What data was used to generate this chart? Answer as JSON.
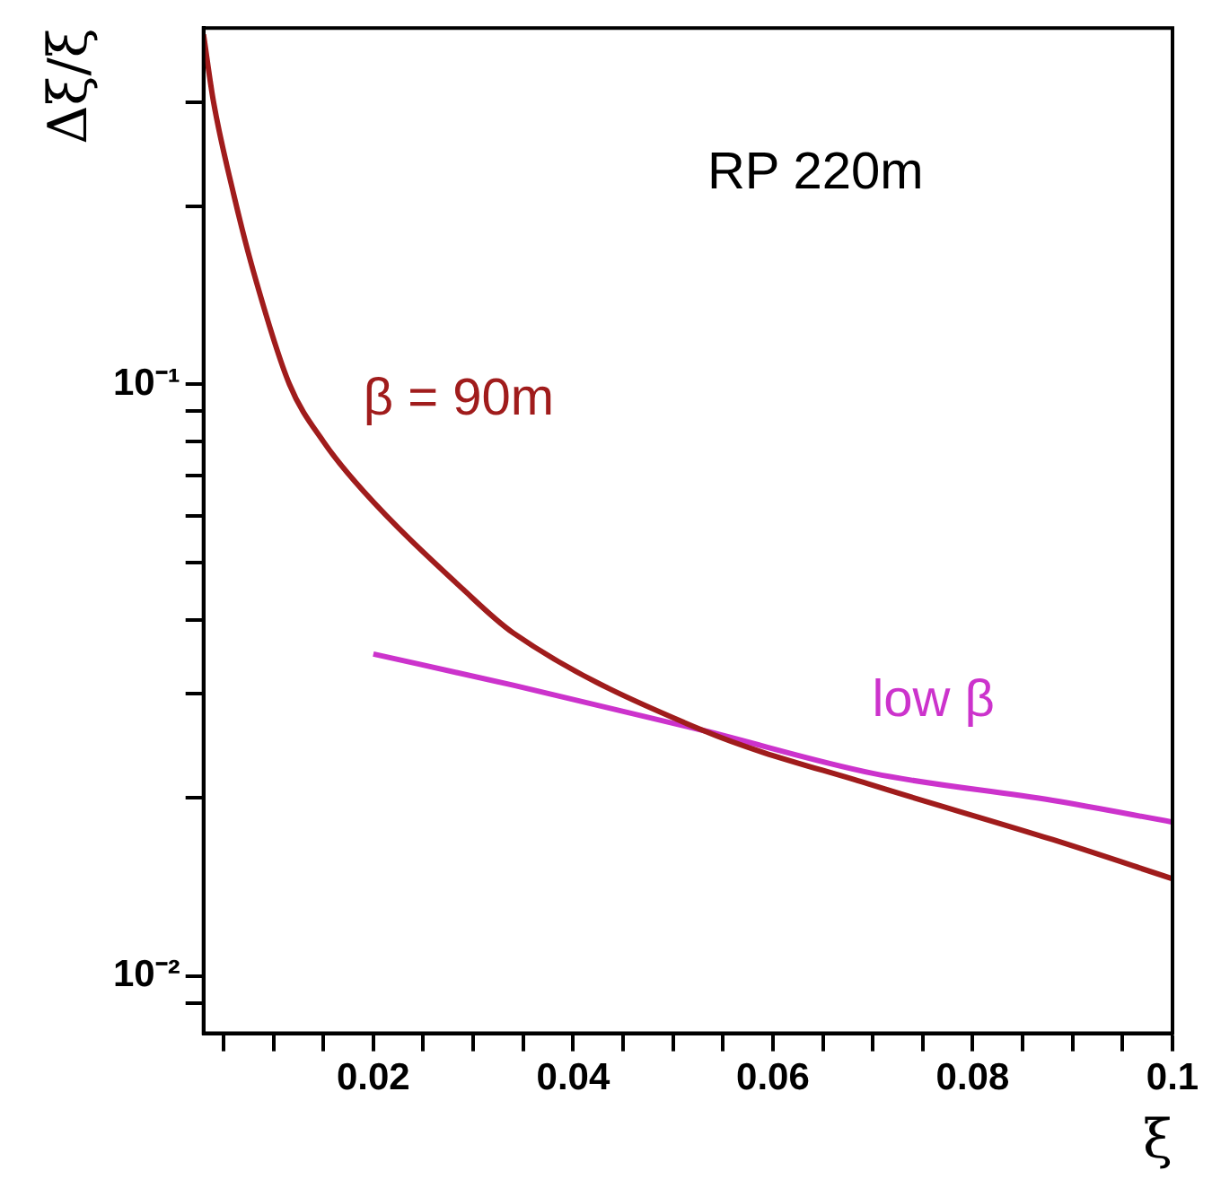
{
  "chart_data": {
    "type": "line",
    "xlabel": "ξ",
    "ylabel": "Δξ/ξ",
    "log": "y",
    "grid": false,
    "legend": false,
    "marker": "none",
    "xlim": [
      0.003,
      0.1
    ],
    "ylim": [
      0.008,
      0.4
    ],
    "xticks": [
      {
        "value": 0.005,
        "label": null
      },
      {
        "value": 0.01,
        "label": null
      },
      {
        "value": 0.015,
        "label": null
      },
      {
        "value": 0.02,
        "label": "0.02"
      },
      {
        "value": 0.025,
        "label": null
      },
      {
        "value": 0.03,
        "label": null
      },
      {
        "value": 0.035,
        "label": null
      },
      {
        "value": 0.04,
        "label": "0.04"
      },
      {
        "value": 0.045,
        "label": null
      },
      {
        "value": 0.05,
        "label": null
      },
      {
        "value": 0.055,
        "label": null
      },
      {
        "value": 0.06,
        "label": "0.06"
      },
      {
        "value": 0.065,
        "label": null
      },
      {
        "value": 0.07,
        "label": null
      },
      {
        "value": 0.075,
        "label": null
      },
      {
        "value": 0.08,
        "label": "0.08"
      },
      {
        "value": 0.085,
        "label": null
      },
      {
        "value": 0.09,
        "label": null
      },
      {
        "value": 0.095,
        "label": null
      },
      {
        "value": 0.1,
        "label": "0.1"
      }
    ],
    "yticks": [
      {
        "value": 0.009,
        "label": null
      },
      {
        "value": 0.01,
        "label": "10⁻²"
      },
      {
        "value": 0.02,
        "label": null
      },
      {
        "value": 0.03,
        "label": null
      },
      {
        "value": 0.04,
        "label": null
      },
      {
        "value": 0.05,
        "label": null
      },
      {
        "value": 0.06,
        "label": null
      },
      {
        "value": 0.07,
        "label": null
      },
      {
        "value": 0.08,
        "label": null
      },
      {
        "value": 0.09,
        "label": null
      },
      {
        "value": 0.1,
        "label": "10⁻¹"
      },
      {
        "value": 0.2,
        "label": null
      },
      {
        "value": 0.3,
        "label": null
      }
    ],
    "series": [
      {
        "name": "β = 90m",
        "color": "#a01c1c",
        "x": [
          0.003,
          0.004,
          0.006,
          0.008,
          0.0116,
          0.015,
          0.019,
          0.029,
          0.034,
          0.053,
          0.07,
          0.088,
          0.1
        ],
        "values": [
          0.39,
          0.3,
          0.21,
          0.155,
          0.1,
          0.08,
          0.066,
          0.045,
          0.038,
          0.026,
          0.021,
          0.017,
          0.0146
        ]
      },
      {
        "name": "low β",
        "color": "#cc33cc",
        "x": [
          0.02,
          0.034,
          0.053,
          0.07,
          0.088,
          0.1
        ],
        "values": [
          0.035,
          0.031,
          0.026,
          0.022,
          0.0198,
          0.0182
        ]
      }
    ],
    "annotations": [
      "RP 220m"
    ]
  }
}
